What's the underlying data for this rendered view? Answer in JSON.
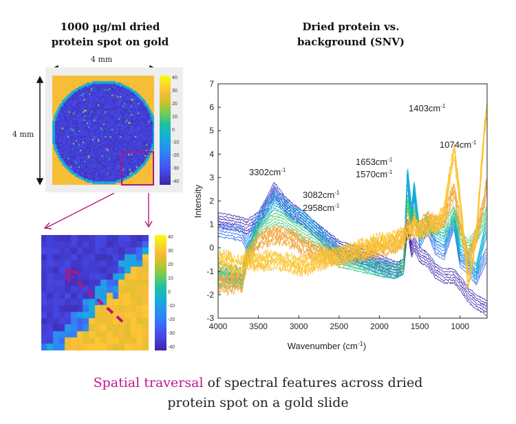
{
  "left_panel": {
    "title_line1": "1000 µg/ml dried",
    "title_line2": "protein spot on gold",
    "width_label": "4 mm",
    "height_label": "4 mm",
    "colorbar_ticks": [
      "40",
      "30",
      "20",
      "10",
      "0",
      "-10",
      "-20",
      "-30",
      "-40"
    ],
    "colorbar_range": [
      -40,
      40
    ],
    "colormap": "parula",
    "highlight_color": "#b5137f"
  },
  "zoom_panel": {
    "colorbar_ticks": [
      "40",
      "30",
      "20",
      "10",
      "0",
      "-10",
      "-20",
      "-30",
      "-40"
    ],
    "traversal_arrow_color": "#b5137f"
  },
  "right_panel": {
    "title_line1": "Dried protein vs.",
    "title_line2": "background (SNV)"
  },
  "chart_data": {
    "type": "line",
    "xlabel": "Wavenumber (cm",
    "xlabel_sup": "-1",
    "xlabel_end": ")",
    "ylabel": "Intensity",
    "xlim": [
      4000,
      665
    ],
    "ylim": [
      -3,
      7
    ],
    "x_reversed": true,
    "xticks": [
      4000,
      3500,
      3000,
      2500,
      2000,
      1500,
      1000
    ],
    "yticks": [
      -3,
      -2,
      -1,
      0,
      1,
      2,
      3,
      4,
      5,
      6,
      7
    ],
    "grid": false,
    "annotations": [
      {
        "text": "3302cm",
        "sup": "-1"
      },
      {
        "text": "3082cm",
        "sup": "-1"
      },
      {
        "text": "2958cm",
        "sup": "-1"
      },
      {
        "text": "1653cm",
        "sup": "-1"
      },
      {
        "text": "1570cm",
        "sup": "-1"
      },
      {
        "text": "1403cm",
        "sup": "-1"
      },
      {
        "text": "1074cm",
        "sup": "-1"
      }
    ],
    "x": [
      4000,
      3700,
      3650,
      3500,
      3302,
      3200,
      3082,
      2958,
      2800,
      2500,
      2000,
      1800,
      1700,
      1653,
      1600,
      1570,
      1500,
      1403,
      1300,
      1200,
      1074,
      1000,
      900,
      800,
      700,
      665
    ],
    "series": [
      {
        "color": "#3e26a8",
        "values": [
          1.2,
          1.0,
          0.9,
          1.2,
          2.5,
          2.0,
          1.6,
          1.3,
          0.8,
          0.0,
          -0.6,
          -0.9,
          -0.8,
          1.0,
          -0.1,
          0.2,
          -0.3,
          -0.5,
          -1.0,
          -1.2,
          -1.2,
          -1.5,
          -2.0,
          -2.3,
          -2.5,
          -2.6
        ]
      },
      {
        "color": "#2f6ff0",
        "values": [
          0.8,
          0.6,
          0.2,
          1.2,
          2.3,
          1.9,
          1.5,
          1.3,
          0.8,
          -0.1,
          -0.8,
          -1.0,
          -0.8,
          3.0,
          1.3,
          2.4,
          0.3,
          0.9,
          0.0,
          -0.2,
          1.1,
          -0.5,
          -0.8,
          -1.3,
          -0.5,
          -0.3
        ]
      },
      {
        "color": "#13b1d6",
        "values": [
          -1.0,
          -1.2,
          -0.3,
          1.0,
          2.0,
          1.8,
          1.4,
          1.3,
          0.8,
          -0.3,
          -0.9,
          -1.0,
          -0.8,
          3.2,
          1.5,
          2.6,
          0.5,
          1.2,
          0.5,
          0.3,
          1.2,
          -0.2,
          -0.5,
          -1.0,
          0.5,
          0.8
        ]
      },
      {
        "color": "#35c46a",
        "values": [
          -1.3,
          -1.4,
          -0.5,
          0.8,
          1.3,
          1.2,
          0.9,
          0.6,
          0.3,
          -0.5,
          -0.9,
          -1.0,
          -0.8,
          2.0,
          1.0,
          1.5,
          0.8,
          1.0,
          0.9,
          0.8,
          1.5,
          0.5,
          0.0,
          0.5,
          1.2,
          1.5
        ]
      },
      {
        "color": "#f0a63a",
        "values": [
          -1.5,
          -1.5,
          -0.5,
          0.3,
          0.6,
          0.5,
          0.4,
          0.1,
          -0.2,
          -0.4,
          0.0,
          0.2,
          0.4,
          1.0,
          0.8,
          1.0,
          0.8,
          1.2,
          1.0,
          1.2,
          2.5,
          1.0,
          -0.5,
          0.5,
          2.0,
          3.0
        ]
      },
      {
        "color": "#fbc32a",
        "values": [
          -0.5,
          -0.8,
          -0.5,
          -0.6,
          -0.5,
          -0.6,
          -0.7,
          -0.8,
          -0.6,
          -0.3,
          0.2,
          0.3,
          0.5,
          0.6,
          0.8,
          0.9,
          0.7,
          0.9,
          1.0,
          1.5,
          4.2,
          2.0,
          -1.5,
          0.5,
          5.0,
          6.0
        ]
      }
    ]
  },
  "caption": {
    "highlight": "Spatial traversal",
    "line1_rest": " of spectral features across dried",
    "line2": "protein spot on a gold slide"
  }
}
